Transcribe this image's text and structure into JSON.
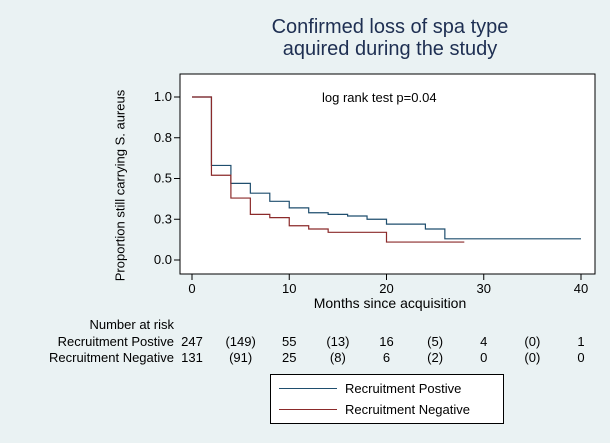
{
  "colors": {
    "background": "#eaf2f3",
    "title": "#1e2f52",
    "positive": "#1f4e6e",
    "negative": "#8b2a2a"
  },
  "chart_data": {
    "type": "line",
    "subtype": "kaplan-meier step",
    "title_lines": [
      "Confirmed loss of spa type",
      "aquired during the study"
    ],
    "xlabel": "Months since acquisition",
    "ylabel": "Proportion still carrying S. aureus",
    "xlim": [
      0,
      40
    ],
    "ylim": [
      0,
      1
    ],
    "x_ticks": [
      0,
      10,
      20,
      30,
      40
    ],
    "y_ticks": [
      0.0,
      0.25,
      0.5,
      0.75,
      1.0
    ],
    "y_tick_labels": [
      "0.0",
      "0.3",
      "0.5",
      "0.8",
      "1.0"
    ],
    "grid": false,
    "annotation": "log rank test p=0.04",
    "legend_position": "bottom",
    "series": [
      {
        "name": "Recruitment Postive",
        "x": [
          0,
          2,
          4,
          6,
          8,
          10,
          12,
          14,
          16,
          18,
          20,
          23,
          24,
          26,
          40
        ],
        "y": [
          1.0,
          0.58,
          0.47,
          0.41,
          0.36,
          0.32,
          0.29,
          0.28,
          0.27,
          0.25,
          0.22,
          0.22,
          0.19,
          0.13,
          0.13
        ]
      },
      {
        "name": "Recruitment Negative",
        "x": [
          0,
          2,
          4,
          6,
          8,
          10,
          12,
          14,
          20,
          28
        ],
        "y": [
          1.0,
          0.52,
          0.38,
          0.28,
          0.26,
          0.21,
          0.19,
          0.17,
          0.11,
          0.11
        ]
      }
    ],
    "risk_table": {
      "title": "Number at risk",
      "x": [
        0,
        5,
        10,
        15,
        20,
        25,
        30,
        35,
        40
      ],
      "rows": [
        {
          "label": "Recruitment Postive",
          "values": [
            "247",
            "(149)",
            "55",
            "(13)",
            "16",
            "(5)",
            "4",
            "(0)",
            "1"
          ]
        },
        {
          "label": "Recruitment Negative",
          "values": [
            "131",
            "(91)",
            "25",
            "(8)",
            "6",
            "(2)",
            "0",
            "(0)",
            "0"
          ]
        }
      ]
    }
  }
}
